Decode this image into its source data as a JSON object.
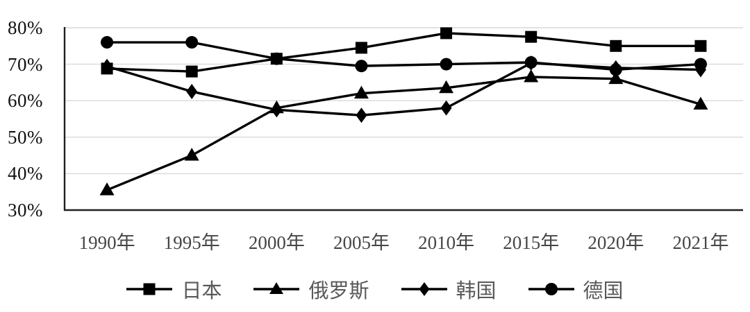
{
  "chart_data": {
    "type": "line",
    "categories": [
      "1990年",
      "1995年",
      "2000年",
      "2005年",
      "2010年",
      "2015年",
      "2020年",
      "2021年"
    ],
    "series": [
      {
        "key": "japan",
        "name": "日本",
        "marker": "square",
        "values": [
          68.8,
          68.0,
          71.5,
          74.5,
          78.5,
          77.5,
          75.0,
          75.0
        ]
      },
      {
        "key": "russia",
        "name": "俄罗斯",
        "marker": "triangle",
        "values": [
          35.5,
          45.0,
          58.0,
          62.0,
          63.5,
          66.5,
          66.0,
          59.0
        ]
      },
      {
        "key": "korea",
        "name": "韩国",
        "marker": "diamond",
        "values": [
          69.4,
          62.5,
          57.5,
          56.0,
          58.0,
          70.3,
          69.0,
          68.5
        ]
      },
      {
        "key": "germany",
        "name": "德国",
        "marker": "circle",
        "values": [
          76.0,
          76.0,
          71.5,
          69.5,
          70.0,
          70.5,
          68.5,
          70.0
        ]
      }
    ],
    "ylim": [
      30,
      80
    ],
    "ytick_step": 10,
    "yticks": [
      30,
      40,
      50,
      60,
      70,
      80
    ],
    "ytick_labels": [
      "30%",
      "40%",
      "50%",
      "60%",
      "70%",
      "80%"
    ],
    "grid": "horizontal",
    "legend_position": "bottom",
    "title": "",
    "xlabel": "",
    "ylabel": "",
    "colors": {
      "series_color": "#000000",
      "grid_color": "#d9d9d9",
      "axis_color": "#1f1f1f",
      "ytick_label_color": "#111111",
      "xtick_label_color": "#454545",
      "legend_label_color": "#595959"
    }
  }
}
